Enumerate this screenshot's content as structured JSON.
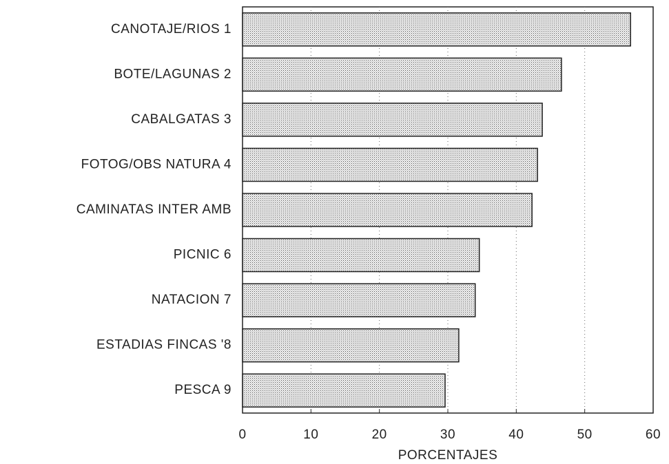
{
  "chart_data": {
    "type": "bar",
    "orientation": "horizontal",
    "categories": [
      "CANOTAJE/RIOS 1",
      "BOTE/LAGUNAS 2",
      "CABALGATAS 3",
      "FOTOG/OBS NATURA 4",
      "CAMINATAS INTER AMB",
      "PICNIC 6",
      "NATACION 7",
      "ESTADIAS FINCAS '8",
      "PESCA 9"
    ],
    "values": [
      56.7,
      46.6,
      43.8,
      43.1,
      42.3,
      34.6,
      34.0,
      31.6,
      29.6
    ],
    "color": "#d4d4d4",
    "xlabel": "PORCENTAJES",
    "xlim": [
      0,
      60
    ],
    "xticks": [
      0,
      10,
      20,
      30,
      40,
      50,
      60
    ],
    "grid": true
  }
}
